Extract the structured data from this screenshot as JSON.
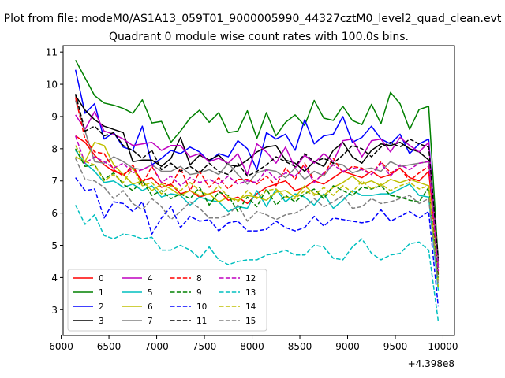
{
  "figure": {
    "suptitle": "Plot from file: modeM0/AS1A13_059T01_9000005990_44327cztM0_level2_quad_clean.evt",
    "offset_label": "+4.398e8"
  },
  "chart_data": {
    "type": "line",
    "title": "Quadrant 0 module wise count rates with 100.0s bins.",
    "xlabel": "",
    "ylabel": "",
    "x_offset": 439800000,
    "xlim": [
      6020,
      10120
    ],
    "ylim": [
      2.2,
      11.2
    ],
    "xticks": [
      6000,
      6500,
      7000,
      7500,
      8000,
      8500,
      9000,
      9500,
      10000
    ],
    "yticks": [
      3,
      4,
      5,
      6,
      7,
      8,
      9,
      10,
      11
    ],
    "grid": false,
    "legend_position": "lower-left",
    "x": [
      6150,
      6250,
      6350,
      6450,
      6550,
      6650,
      6750,
      6850,
      6950,
      7050,
      7150,
      7250,
      7350,
      7450,
      7550,
      7650,
      7750,
      7850,
      7950,
      8050,
      8150,
      8250,
      8350,
      8450,
      8550,
      8650,
      8750,
      8850,
      8950,
      9050,
      9150,
      9250,
      9350,
      9450,
      9550,
      9650,
      9750,
      9850,
      9950
    ],
    "series": [
      {
        "name": "0",
        "color": "#ff0000",
        "style": "solid",
        "values": [
          8.4,
          8.2,
          7.8,
          7.5,
          7.3,
          7.2,
          7.4,
          7.0,
          7.1,
          6.8,
          6.9,
          6.6,
          6.7,
          6.5,
          6.6,
          6.7,
          6.4,
          6.5,
          6.3,
          6.6,
          6.8,
          6.9,
          7.0,
          6.7,
          6.8,
          7.0,
          6.9,
          7.1,
          7.3,
          7.2,
          7.1,
          7.3,
          7.1,
          7.2,
          7.4,
          7.1,
          7.0,
          7.3,
          4.4
        ]
      },
      {
        "name": "1",
        "color": "#008000",
        "style": "solid",
        "values": [
          10.75,
          10.2,
          9.65,
          9.42,
          9.35,
          9.25,
          9.1,
          9.52,
          8.8,
          8.85,
          8.2,
          8.55,
          8.95,
          9.2,
          8.82,
          9.12,
          8.5,
          8.55,
          9.18,
          8.32,
          9.12,
          8.4,
          8.82,
          9.05,
          8.72,
          9.5,
          8.95,
          8.88,
          9.32,
          8.88,
          8.75,
          9.38,
          8.78,
          9.75,
          9.4,
          8.6,
          9.22,
          9.32,
          4.5
        ]
      },
      {
        "name": "2",
        "color": "#0000ff",
        "style": "solid",
        "values": [
          10.45,
          9.1,
          9.4,
          8.3,
          8.5,
          8.05,
          7.95,
          8.7,
          7.5,
          7.7,
          7.95,
          7.85,
          8.05,
          7.9,
          7.6,
          7.85,
          7.75,
          8.25,
          8.0,
          7.35,
          8.5,
          8.3,
          8.45,
          7.95,
          8.9,
          8.15,
          8.4,
          8.45,
          9.0,
          8.2,
          8.35,
          8.7,
          8.3,
          8.15,
          8.45,
          7.85,
          8.15,
          8.3,
          4.3
        ]
      },
      {
        "name": "3",
        "color": "#000000",
        "style": "solid",
        "values": [
          9.65,
          9.2,
          8.9,
          8.7,
          8.6,
          8.5,
          7.6,
          7.65,
          7.65,
          7.45,
          7.7,
          8.35,
          7.5,
          7.8,
          7.65,
          7.8,
          7.5,
          7.45,
          7.65,
          7.9,
          8.05,
          8.1,
          7.65,
          7.55,
          7.3,
          7.6,
          7.45,
          7.95,
          8.2,
          7.75,
          7.55,
          7.95,
          8.15,
          8.1,
          8.2,
          8.0,
          7.9,
          7.65,
          4.5
        ]
      },
      {
        "name": "4",
        "color": "#bf00bf",
        "style": "solid",
        "values": [
          9.05,
          8.6,
          9.15,
          8.55,
          8.45,
          8.3,
          8.1,
          8.15,
          8.2,
          7.95,
          8.1,
          8.1,
          7.75,
          7.85,
          7.6,
          7.7,
          7.55,
          7.85,
          7.2,
          8.15,
          7.9,
          7.55,
          8.05,
          7.4,
          7.8,
          7.55,
          7.85,
          7.6,
          8.25,
          8.3,
          7.75,
          8.25,
          8.3,
          7.9,
          8.35,
          8.1,
          7.9,
          8.2,
          4.4
        ]
      },
      {
        "name": "5",
        "color": "#00bfbf",
        "style": "solid",
        "values": [
          7.95,
          7.55,
          7.3,
          6.95,
          7.0,
          6.8,
          6.9,
          6.7,
          6.85,
          6.5,
          6.6,
          6.55,
          6.25,
          6.5,
          6.4,
          6.35,
          6.05,
          6.2,
          6.15,
          6.7,
          6.2,
          6.75,
          6.35,
          6.6,
          6.5,
          6.25,
          6.6,
          6.15,
          6.4,
          6.7,
          6.55,
          6.55,
          6.6,
          6.6,
          6.75,
          6.9,
          6.55,
          6.5,
          3.6
        ]
      },
      {
        "name": "6",
        "color": "#bfbf00",
        "style": "solid",
        "values": [
          7.75,
          7.6,
          8.2,
          8.1,
          7.5,
          7.2,
          6.9,
          7.0,
          6.7,
          6.9,
          6.75,
          6.55,
          6.7,
          6.55,
          6.6,
          6.35,
          6.5,
          6.4,
          6.55,
          6.5,
          6.4,
          6.65,
          6.7,
          6.5,
          6.85,
          6.6,
          6.55,
          6.8,
          6.95,
          7.15,
          6.9,
          7.0,
          6.85,
          7.05,
          6.95,
          7.05,
          6.95,
          6.85,
          3.9
        ]
      },
      {
        "name": "7",
        "color": "#808080",
        "style": "solid",
        "values": [
          9.5,
          8.55,
          7.6,
          7.55,
          7.75,
          7.6,
          7.4,
          7.35,
          7.5,
          7.3,
          7.3,
          7.45,
          7.2,
          7.25,
          7.35,
          7.2,
          7.55,
          7.2,
          6.9,
          7.25,
          7.35,
          7.3,
          7.1,
          7.4,
          7.05,
          7.3,
          7.15,
          7.55,
          7.5,
          7.25,
          7.35,
          7.4,
          7.3,
          7.6,
          7.45,
          7.5,
          7.55,
          7.6,
          4.3
        ]
      },
      {
        "name": "8",
        "color": "#ff0000",
        "style": "dashed",
        "values": [
          9.6,
          8.3,
          7.9,
          7.85,
          7.35,
          7.15,
          7.5,
          6.9,
          7.45,
          6.95,
          6.85,
          7.4,
          6.7,
          7.3,
          6.8,
          7.1,
          6.75,
          7.05,
          7.05,
          6.9,
          7.15,
          6.85,
          7.4,
          7.05,
          7.55,
          7.0,
          7.2,
          7.7,
          7.25,
          7.45,
          7.4,
          7.2,
          7.6,
          7.25,
          7.4,
          7.0,
          7.25,
          7.45,
          4.1
        ]
      },
      {
        "name": "9",
        "color": "#008000",
        "style": "dashed",
        "values": [
          8.0,
          7.45,
          7.5,
          7.05,
          7.25,
          6.9,
          6.7,
          7.0,
          6.55,
          6.7,
          6.45,
          6.6,
          6.45,
          6.8,
          6.25,
          6.65,
          6.55,
          6.05,
          6.5,
          6.2,
          6.75,
          6.25,
          6.55,
          6.35,
          6.6,
          6.75,
          6.45,
          6.85,
          6.7,
          6.55,
          6.8,
          6.75,
          6.85,
          6.55,
          6.5,
          6.4,
          6.35,
          6.8,
          4.0
        ]
      },
      {
        "name": "10",
        "color": "#0000ff",
        "style": "dashed",
        "values": [
          7.1,
          6.7,
          6.75,
          5.85,
          6.35,
          6.3,
          6.05,
          6.35,
          5.35,
          5.85,
          6.2,
          5.55,
          5.9,
          5.75,
          5.8,
          5.45,
          5.7,
          5.75,
          5.45,
          5.45,
          5.5,
          5.75,
          5.55,
          5.45,
          5.55,
          5.9,
          5.6,
          5.85,
          5.8,
          5.75,
          5.7,
          5.75,
          6.1,
          5.75,
          5.9,
          6.05,
          5.85,
          6.05,
          3.1
        ]
      },
      {
        "name": "11",
        "color": "#000000",
        "style": "dashed",
        "values": [
          9.7,
          8.55,
          8.7,
          8.4,
          8.5,
          8.1,
          7.95,
          7.7,
          7.95,
          7.35,
          7.55,
          7.3,
          7.45,
          7.25,
          7.55,
          7.3,
          7.2,
          7.55,
          7.15,
          7.3,
          7.5,
          7.75,
          7.6,
          7.45,
          7.85,
          7.6,
          7.7,
          7.55,
          7.8,
          8.1,
          8.0,
          7.75,
          8.05,
          8.2,
          8.05,
          8.3,
          8.15,
          8.05,
          4.6
        ]
      },
      {
        "name": "12",
        "color": "#bf00bf",
        "style": "dashed",
        "values": [
          8.4,
          7.55,
          7.75,
          7.6,
          7.4,
          7.55,
          7.25,
          7.35,
          7.5,
          6.95,
          7.15,
          6.85,
          7.1,
          6.95,
          7.05,
          6.9,
          7.15,
          6.9,
          7.0,
          6.95,
          7.35,
          7.05,
          7.25,
          7.15,
          7.45,
          6.95,
          7.25,
          7.5,
          7.3,
          7.4,
          7.35,
          7.2,
          7.55,
          7.15,
          7.5,
          7.35,
          7.55,
          7.6,
          4.2
        ]
      },
      {
        "name": "13",
        "color": "#00bfbf",
        "style": "dashed",
        "values": [
          6.25,
          5.65,
          5.95,
          5.3,
          5.2,
          5.35,
          5.3,
          5.2,
          5.25,
          4.85,
          4.85,
          5.0,
          4.85,
          4.6,
          4.95,
          4.55,
          4.4,
          4.5,
          4.55,
          4.55,
          4.7,
          4.75,
          4.85,
          4.7,
          4.7,
          5.0,
          4.95,
          4.6,
          4.55,
          4.95,
          5.2,
          4.75,
          4.55,
          4.7,
          4.75,
          5.05,
          5.1,
          4.85,
          2.65
        ]
      },
      {
        "name": "14",
        "color": "#bfbf00",
        "style": "dashed",
        "values": [
          8.1,
          7.6,
          7.5,
          7.0,
          7.2,
          6.95,
          7.4,
          6.85,
          6.95,
          6.6,
          6.85,
          6.7,
          6.95,
          6.7,
          6.55,
          6.85,
          6.5,
          6.35,
          6.7,
          6.45,
          6.7,
          6.75,
          6.5,
          6.45,
          6.7,
          6.55,
          6.8,
          6.55,
          6.85,
          6.65,
          7.0,
          6.75,
          6.9,
          6.7,
          6.85,
          6.95,
          6.75,
          6.85,
          3.7
        ]
      },
      {
        "name": "15",
        "color": "#808080",
        "style": "dashed",
        "values": [
          7.7,
          7.05,
          7.0,
          6.8,
          6.45,
          6.7,
          6.3,
          6.1,
          6.45,
          6.2,
          5.8,
          6.05,
          6.35,
          6.15,
          5.85,
          5.85,
          5.95,
          6.25,
          5.75,
          6.05,
          5.95,
          5.8,
          5.95,
          6.0,
          6.15,
          6.45,
          6.2,
          6.35,
          6.55,
          6.15,
          6.2,
          6.45,
          6.3,
          6.35,
          6.45,
          6.55,
          6.3,
          6.45,
          3.8
        ]
      }
    ]
  }
}
